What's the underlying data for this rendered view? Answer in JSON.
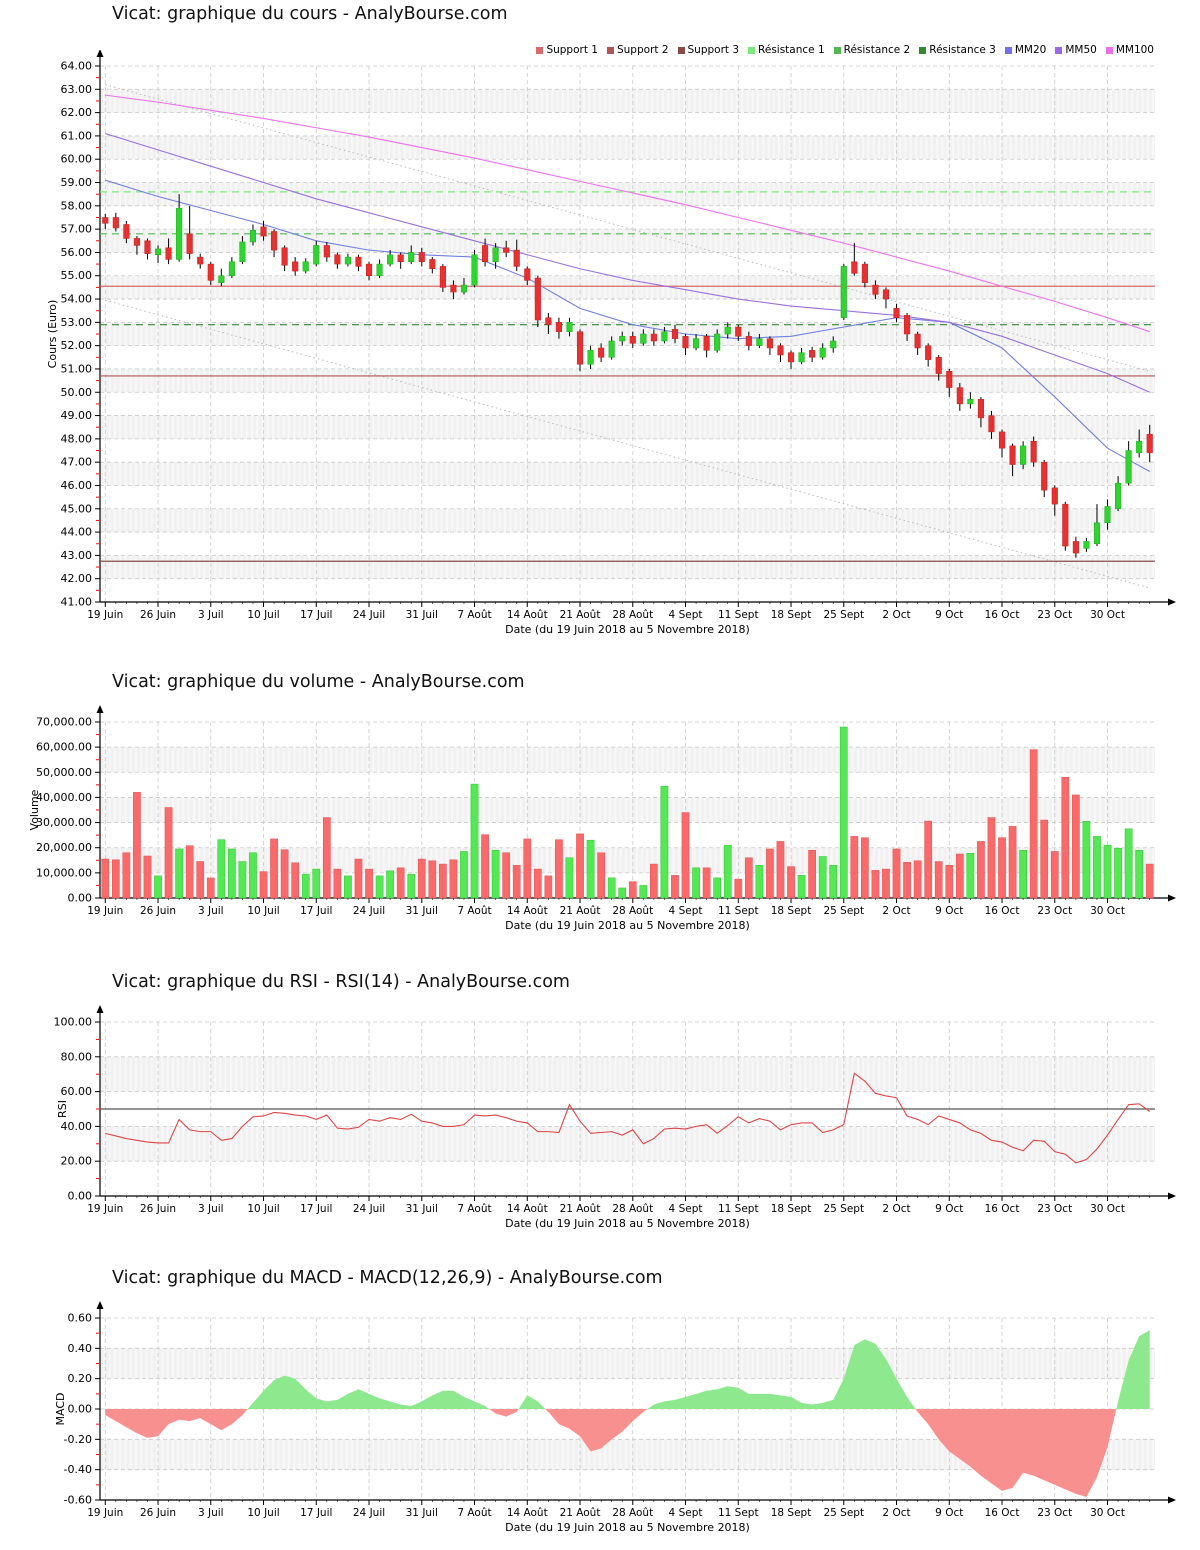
{
  "site": "AnalyBourse.com",
  "instrument": "Vicat",
  "x_axis": {
    "xlabel": "Date (du 19 Juin 2018 au 5 Novembre 2018)",
    "tick_labels": [
      "19 Juin",
      "26 Juin",
      "3 Juil",
      "10 Juil",
      "17 Juil",
      "24 Juil",
      "31 Juil",
      "7 Août",
      "14 Août",
      "21 Août",
      "28 Août",
      "4 Sept",
      "11 Sept",
      "18 Sept",
      "25 Sept",
      "2 Oct",
      "9 Oct",
      "16 Oct",
      "23 Oct",
      "30 Oct"
    ],
    "tick_every": 5,
    "n_points": 100
  },
  "colors": {
    "candle_up": "#2fd42f",
    "candle_down": "#e93030",
    "wick": "#000000",
    "volume_up": "#54e854",
    "volume_down": "#fa6a6a",
    "rsi_line": "#e04545",
    "rsi_midline": "#555555",
    "macd_pos": "#8ee88e",
    "macd_neg": "#f89090",
    "grid": "#c9c9c9",
    "band": "#f1f1f1",
    "axis": "#000000",
    "minor_tick": "#ff0000",
    "channel": "#b8b8b8",
    "mm20": "#7080e0",
    "mm50": "#9a70e0",
    "mm100": "#ee70ee"
  },
  "chart_data": [
    {
      "type": "candlestick",
      "title": "Vicat: graphique du cours - AnalyBourse.com",
      "ylabel": "Cours (Euro)",
      "xlabel": "Date (du 19 Juin 2018 au 5 Novembre 2018)",
      "ylim": [
        41,
        64
      ],
      "y_step": 1,
      "y_tick_labels": [
        "41.00",
        "42.00",
        "43.00",
        "44.00",
        "45.00",
        "46.00",
        "47.00",
        "48.00",
        "49.00",
        "50.00",
        "51.00",
        "52.00",
        "53.00",
        "54.00",
        "55.00",
        "56.00",
        "57.00",
        "58.00",
        "59.00",
        "60.00",
        "61.00",
        "62.00",
        "63.00",
        "64.00"
      ],
      "legend": [
        {
          "label": "Support 1",
          "color": "#d96a6a"
        },
        {
          "label": "Support 2",
          "color": "#b05555"
        },
        {
          "label": "Support 3",
          "color": "#8a4a4a"
        },
        {
          "label": "Résistance 1",
          "color": "#7ce87c"
        },
        {
          "label": "Résistance 2",
          "color": "#52b852"
        },
        {
          "label": "Résistance 3",
          "color": "#368836"
        },
        {
          "label": "MM20",
          "color": "#7070e8"
        },
        {
          "label": "MM50",
          "color": "#9b6ae8"
        },
        {
          "label": "MM100",
          "color": "#ef6fe8"
        }
      ],
      "supports": [
        {
          "name": "Support 1",
          "value": 54.55,
          "color": "#d96a6a"
        },
        {
          "name": "Support 2",
          "value": 50.7,
          "color": "#b05555"
        },
        {
          "name": "Support 3",
          "value": 42.75,
          "color": "#8a4a4a"
        }
      ],
      "resistances": [
        {
          "name": "Résistance 1",
          "value": 58.6,
          "color": "#7ce87c"
        },
        {
          "name": "Résistance 2",
          "value": 56.8,
          "color": "#52b852"
        },
        {
          "name": "Résistance 3",
          "value": 52.9,
          "color": "#368836"
        }
      ],
      "channel": {
        "upper": [
          63.2,
          50.9
        ],
        "lower": [
          53.95,
          41.6
        ]
      },
      "ma_anchor_idx": [
        0,
        5,
        10,
        15,
        20,
        25,
        30,
        35,
        40,
        45,
        50,
        55,
        60,
        65,
        70,
        75,
        80,
        85,
        90,
        95,
        99
      ],
      "mm20": [
        59.1,
        58.4,
        57.8,
        57.2,
        56.5,
        56.1,
        55.9,
        55.8,
        54.9,
        53.6,
        52.9,
        52.5,
        52.3,
        52.4,
        52.8,
        53.2,
        53.0,
        51.9,
        49.8,
        47.6,
        46.6
      ],
      "mm50": [
        61.1,
        60.4,
        59.7,
        59.0,
        58.3,
        57.7,
        57.1,
        56.5,
        55.9,
        55.3,
        54.8,
        54.4,
        54.0,
        53.7,
        53.5,
        53.3,
        53.0,
        52.4,
        51.6,
        50.8,
        50.0
      ],
      "mm100": [
        62.75,
        62.45,
        62.1,
        61.75,
        61.35,
        60.95,
        60.5,
        60.05,
        59.55,
        59.05,
        58.55,
        58.05,
        57.5,
        56.95,
        56.4,
        55.8,
        55.2,
        54.55,
        53.9,
        53.2,
        52.6
      ],
      "candles_ohlc": [
        [
          57.5,
          57.65,
          57.0,
          57.25
        ],
        [
          57.5,
          57.7,
          56.9,
          57.05
        ],
        [
          57.2,
          57.35,
          56.4,
          56.6
        ],
        [
          56.6,
          56.7,
          55.9,
          56.3
        ],
        [
          56.5,
          56.6,
          55.7,
          55.95
        ],
        [
          55.9,
          56.3,
          55.55,
          56.15
        ],
        [
          56.2,
          56.6,
          55.5,
          55.7
        ],
        [
          55.7,
          58.5,
          55.6,
          57.9
        ],
        [
          56.8,
          58.0,
          55.7,
          55.95
        ],
        [
          55.8,
          55.95,
          55.3,
          55.5
        ],
        [
          55.5,
          55.6,
          54.6,
          54.8
        ],
        [
          54.7,
          55.3,
          54.55,
          55.0
        ],
        [
          55.0,
          55.8,
          54.9,
          55.6
        ],
        [
          55.6,
          56.7,
          55.5,
          56.45
        ],
        [
          56.45,
          57.2,
          56.3,
          56.95
        ],
        [
          57.1,
          57.35,
          56.5,
          56.7
        ],
        [
          56.9,
          57.0,
          55.8,
          56.1
        ],
        [
          56.2,
          56.3,
          55.2,
          55.45
        ],
        [
          55.6,
          55.8,
          55.0,
          55.2
        ],
        [
          55.2,
          55.75,
          55.1,
          55.6
        ],
        [
          55.5,
          56.5,
          55.4,
          56.3
        ],
        [
          56.3,
          56.45,
          55.6,
          55.8
        ],
        [
          55.9,
          56.0,
          55.3,
          55.5
        ],
        [
          55.5,
          55.95,
          55.4,
          55.8
        ],
        [
          55.8,
          55.9,
          55.2,
          55.4
        ],
        [
          55.5,
          55.6,
          54.8,
          55.0
        ],
        [
          55.0,
          55.7,
          54.9,
          55.5
        ],
        [
          55.5,
          56.1,
          55.4,
          55.9
        ],
        [
          55.9,
          56.0,
          55.3,
          55.6
        ],
        [
          55.6,
          56.3,
          55.5,
          56.0
        ],
        [
          56.0,
          56.2,
          55.4,
          55.6
        ],
        [
          55.7,
          55.8,
          55.1,
          55.3
        ],
        [
          55.4,
          55.5,
          54.3,
          54.5
        ],
        [
          54.6,
          54.8,
          54.0,
          54.3
        ],
        [
          54.3,
          54.9,
          54.2,
          54.6
        ],
        [
          54.6,
          56.1,
          54.5,
          55.9
        ],
        [
          56.3,
          56.6,
          55.4,
          55.6
        ],
        [
          55.6,
          56.4,
          55.3,
          56.2
        ],
        [
          56.2,
          56.5,
          55.8,
          56.0
        ],
        [
          56.1,
          56.55,
          55.2,
          55.4
        ],
        [
          55.3,
          55.4,
          54.6,
          54.8
        ],
        [
          54.9,
          55.0,
          52.8,
          53.1
        ],
        [
          53.2,
          53.4,
          52.5,
          52.9
        ],
        [
          53.0,
          53.2,
          52.3,
          52.6
        ],
        [
          52.6,
          53.2,
          52.4,
          53.0
        ],
        [
          52.6,
          52.7,
          50.9,
          51.2
        ],
        [
          51.2,
          52.0,
          51.0,
          51.8
        ],
        [
          51.9,
          52.1,
          51.3,
          51.5
        ],
        [
          51.5,
          52.4,
          51.4,
          52.2
        ],
        [
          52.2,
          52.6,
          52.0,
          52.4
        ],
        [
          52.4,
          52.6,
          51.9,
          52.1
        ],
        [
          52.1,
          52.7,
          52.0,
          52.5
        ],
        [
          52.5,
          52.7,
          52.0,
          52.2
        ],
        [
          52.2,
          52.8,
          52.1,
          52.6
        ],
        [
          52.7,
          52.9,
          52.1,
          52.3
        ],
        [
          52.4,
          52.5,
          51.6,
          51.9
        ],
        [
          51.9,
          52.5,
          51.8,
          52.3
        ],
        [
          52.4,
          52.5,
          51.5,
          51.8
        ],
        [
          51.8,
          52.7,
          51.7,
          52.5
        ],
        [
          52.5,
          53.0,
          52.3,
          52.8
        ],
        [
          52.8,
          52.9,
          52.2,
          52.4
        ],
        [
          52.4,
          52.6,
          51.8,
          52.0
        ],
        [
          52.0,
          52.5,
          51.9,
          52.3
        ],
        [
          52.3,
          52.4,
          51.6,
          51.9
        ],
        [
          52.0,
          52.1,
          51.3,
          51.6
        ],
        [
          51.7,
          51.8,
          51.0,
          51.3
        ],
        [
          51.3,
          51.9,
          51.2,
          51.7
        ],
        [
          51.8,
          51.95,
          51.3,
          51.5
        ],
        [
          51.5,
          52.1,
          51.4,
          51.9
        ],
        [
          51.9,
          52.4,
          51.7,
          52.2
        ],
        [
          53.2,
          55.5,
          53.1,
          55.4
        ],
        [
          55.6,
          56.4,
          55.0,
          55.1
        ],
        [
          55.5,
          55.6,
          54.5,
          54.7
        ],
        [
          54.6,
          54.8,
          54.0,
          54.2
        ],
        [
          54.4,
          54.5,
          53.6,
          54.0
        ],
        [
          53.6,
          53.8,
          53.0,
          53.2
        ],
        [
          53.3,
          53.4,
          52.2,
          52.5
        ],
        [
          52.5,
          52.6,
          51.6,
          51.9
        ],
        [
          52.0,
          52.1,
          51.1,
          51.4
        ],
        [
          51.5,
          51.6,
          50.5,
          50.8
        ],
        [
          50.9,
          51.0,
          49.8,
          50.2
        ],
        [
          50.2,
          50.4,
          49.2,
          49.5
        ],
        [
          49.5,
          50.0,
          49.3,
          49.7
        ],
        [
          49.7,
          49.8,
          48.5,
          48.9
        ],
        [
          49.0,
          49.2,
          48.0,
          48.3
        ],
        [
          48.3,
          48.4,
          47.2,
          47.6
        ],
        [
          47.7,
          47.8,
          46.4,
          46.9
        ],
        [
          46.9,
          47.9,
          46.7,
          47.7
        ],
        [
          47.9,
          48.1,
          46.8,
          47.0
        ],
        [
          47.0,
          47.1,
          45.5,
          45.8
        ],
        [
          45.9,
          46.0,
          44.7,
          45.2
        ],
        [
          45.2,
          45.3,
          43.2,
          43.4
        ],
        [
          43.6,
          43.8,
          42.9,
          43.1
        ],
        [
          43.3,
          43.75,
          43.15,
          43.6
        ],
        [
          43.5,
          45.2,
          43.4,
          44.4
        ],
        [
          44.4,
          45.4,
          44.1,
          45.1
        ],
        [
          45.0,
          46.4,
          44.9,
          46.1
        ],
        [
          46.1,
          47.9,
          46.0,
          47.5
        ],
        [
          47.4,
          48.4,
          47.2,
          47.9
        ],
        [
          48.2,
          48.6,
          47.0,
          47.4
        ]
      ]
    },
    {
      "type": "bar",
      "title": "Vicat: graphique du volume - AnalyBourse.com",
      "ylabel": "Volume",
      "xlabel": "Date (du 19 Juin 2018 au 5 Novembre 2018)",
      "ylim": [
        0,
        70000
      ],
      "y_step": 10000,
      "y_tick_labels": [
        "0.00",
        "10,000.00",
        "20,000.00",
        "30,000.00",
        "40,000.00",
        "50,000.00",
        "60,000.00",
        "70,000.00"
      ],
      "values": [
        15500,
        15200,
        18000,
        42000,
        16700,
        8800,
        36000,
        19500,
        20800,
        14500,
        8000,
        23200,
        19500,
        14500,
        18000,
        10500,
        23500,
        19200,
        14000,
        9500,
        11500,
        32000,
        11500,
        8800,
        15500,
        11500,
        8800,
        10800,
        12000,
        9500,
        15500,
        14800,
        13500,
        15200,
        18500,
        45300,
        25200,
        19000,
        18000,
        13000,
        23500,
        11500,
        8800,
        23200,
        16000,
        25500,
        23000,
        18000,
        8000,
        4000,
        6500,
        5000,
        13500,
        44500,
        9000,
        34000,
        12000,
        12000,
        8000,
        21000,
        7500,
        16000,
        13000,
        19500,
        22500,
        12500,
        9000,
        19000,
        16500,
        13000,
        68000,
        24500,
        24000,
        11000,
        11500,
        19500,
        14200,
        14800,
        30600,
        14500,
        13000,
        17500,
        17800,
        22500,
        32000,
        24000,
        28500,
        19000,
        59000,
        31000,
        18500,
        48000,
        41000,
        30500,
        24500,
        21000,
        19800,
        27500,
        19000,
        13500
      ]
    },
    {
      "type": "line",
      "title": "Vicat: graphique du RSI - RSI(14) - AnalyBourse.com",
      "ylabel": "RSI",
      "xlabel": "Date (du 19 Juin 2018 au 5 Novembre 2018)",
      "ylim": [
        0,
        100
      ],
      "y_step": 20,
      "midline": 50,
      "y_tick_labels": [
        "0.00",
        "20.00",
        "40.00",
        "60.00",
        "80.00",
        "100.00"
      ],
      "values": [
        36,
        34.5,
        33,
        32,
        31,
        30.5,
        30.5,
        44,
        38,
        37,
        37,
        32,
        33,
        40,
        45.5,
        46,
        48,
        47.5,
        46.5,
        46,
        44,
        46.5,
        39,
        38.5,
        39.5,
        44,
        43,
        45,
        44,
        47,
        43,
        42,
        40,
        40,
        41,
        46.5,
        46,
        46.5,
        45,
        43,
        42,
        37,
        37,
        36.5,
        52.5,
        43,
        36,
        36.5,
        37,
        35,
        38,
        30,
        33,
        38.5,
        39,
        38.5,
        40,
        41,
        36,
        40.5,
        45.5,
        42,
        44.5,
        43,
        38,
        41,
        42,
        42,
        36.5,
        38,
        41,
        70.5,
        66,
        59,
        57.5,
        56.5,
        46,
        44,
        41,
        46,
        44,
        42,
        38,
        36,
        32,
        31,
        28,
        26,
        32,
        31.5,
        25.5,
        24,
        19,
        21,
        27,
        35,
        44,
        52.5,
        53,
        48.5
      ]
    },
    {
      "type": "area",
      "title": "Vicat: graphique du MACD - MACD(12,26,9) - AnalyBourse.com",
      "ylabel": "MACD",
      "xlabel": "Date (du 19 Juin 2018 au 5 Novembre 2018)",
      "ylim": [
        -0.6,
        0.6
      ],
      "y_step": 0.2,
      "y_tick_labels": [
        "-0.60",
        "-0.40",
        "-0.20",
        "0.00",
        "0.20",
        "0.40",
        "0.60"
      ],
      "values": [
        -0.04,
        -0.08,
        -0.12,
        -0.16,
        -0.19,
        -0.18,
        -0.1,
        -0.07,
        -0.08,
        -0.06,
        -0.1,
        -0.14,
        -0.1,
        -0.04,
        0.04,
        0.12,
        0.19,
        0.22,
        0.2,
        0.13,
        0.07,
        0.05,
        0.06,
        0.1,
        0.13,
        0.1,
        0.07,
        0.05,
        0.03,
        0.02,
        0.05,
        0.09,
        0.12,
        0.12,
        0.08,
        0.05,
        0.02,
        -0.03,
        -0.05,
        -0.02,
        0.09,
        0.05,
        -0.02,
        -0.1,
        -0.13,
        -0.18,
        -0.28,
        -0.26,
        -0.2,
        -0.15,
        -0.08,
        -0.02,
        0.03,
        0.05,
        0.06,
        0.08,
        0.1,
        0.12,
        0.13,
        0.15,
        0.14,
        0.1,
        0.1,
        0.1,
        0.09,
        0.08,
        0.04,
        0.03,
        0.04,
        0.06,
        0.2,
        0.42,
        0.46,
        0.43,
        0.33,
        0.2,
        0.08,
        -0.02,
        -0.1,
        -0.2,
        -0.28,
        -0.33,
        -0.38,
        -0.44,
        -0.49,
        -0.54,
        -0.52,
        -0.42,
        -0.44,
        -0.47,
        -0.5,
        -0.53,
        -0.56,
        -0.58,
        -0.45,
        -0.25,
        0.05,
        0.32,
        0.48,
        0.52
      ]
    }
  ]
}
